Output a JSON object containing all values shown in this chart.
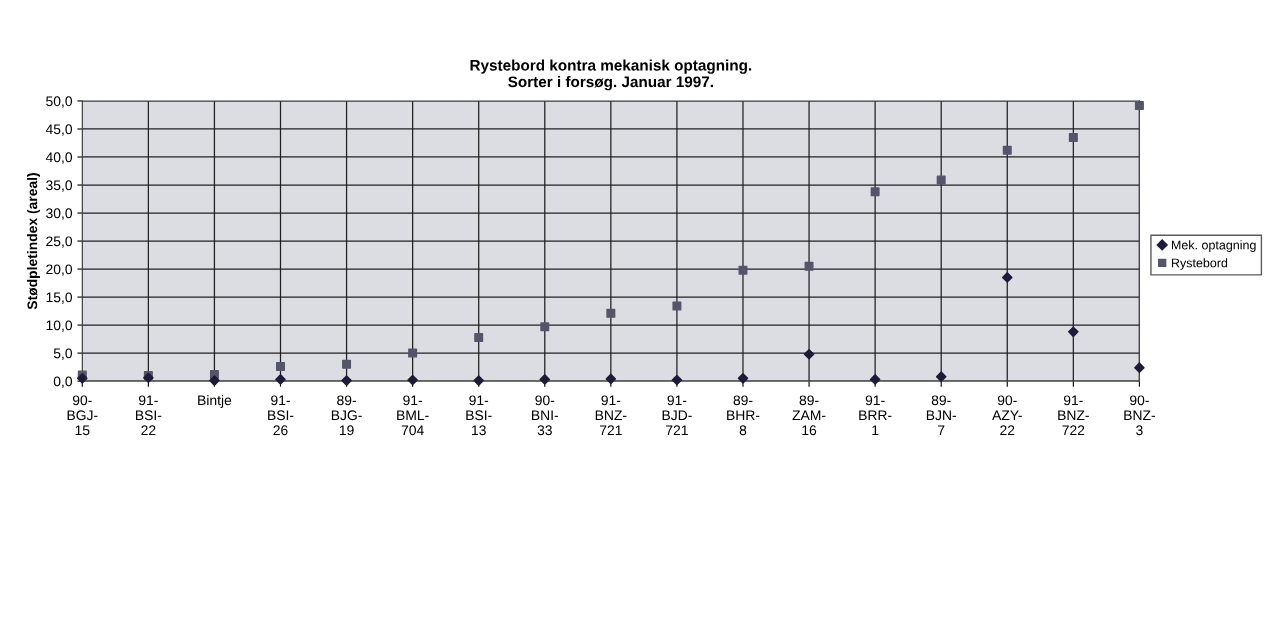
{
  "chart_data": {
    "type": "scatter",
    "title": "Rystebord kontra mekanisk optagning.\nSorter i forsøg. Januar 1997.",
    "ylabel": "Stødpletindex (areal)",
    "categories": [
      "90-\nBGJ-\n15",
      "91-\nBSI-\n22",
      "Bintje",
      "91-\nBSI-\n26",
      "89-\nBJG-\n19",
      "91-\nBML-\n704",
      "91-\nBSI-\n13",
      "90-\nBNI-\n33",
      "91-\nBNZ-\n721",
      "91-\nBJD-\n721",
      "89-\nBHR-\n8",
      "89-\nZAM-\n16",
      "91-\nBRR-\n1",
      "89-\nBJN-\n7",
      "90-\nAZY-\n22",
      "91-\nBNZ-\n722",
      "90-\nBNZ-\n3"
    ],
    "series": [
      {
        "name": "Mek. optagning",
        "color": "#1c1c3a",
        "marker": "diamond",
        "values": [
          0.5,
          0.6,
          0.1,
          0.3,
          0.1,
          0.2,
          0.1,
          0.3,
          0.4,
          0.2,
          0.5,
          4.8,
          0.3,
          0.8,
          18.5,
          8.8,
          2.4
        ]
      },
      {
        "name": "Rystebord",
        "color": "#55556a",
        "marker": "square",
        "values": [
          1.1,
          1.0,
          1.2,
          2.6,
          3.0,
          5.0,
          7.8,
          9.7,
          12.1,
          13.4,
          19.8,
          20.5,
          33.8,
          35.9,
          41.2,
          43.5,
          49.2
        ]
      }
    ],
    "ylim": [
      0,
      50
    ],
    "yticks": [
      {
        "value": 0,
        "label": "0,0"
      },
      {
        "value": 5,
        "label": "5,0"
      },
      {
        "value": 10,
        "label": "10,0"
      },
      {
        "value": 15,
        "label": "15,0"
      },
      {
        "value": 20,
        "label": "20,0"
      },
      {
        "value": 25,
        "label": "25,0"
      },
      {
        "value": 30,
        "label": "30,0"
      },
      {
        "value": 35,
        "label": "35,0"
      },
      {
        "value": 40,
        "label": "40,0"
      },
      {
        "value": 45,
        "label": "45,0"
      },
      {
        "value": 50,
        "label": "50,0"
      }
    ],
    "grid": true,
    "legend": "right"
  }
}
